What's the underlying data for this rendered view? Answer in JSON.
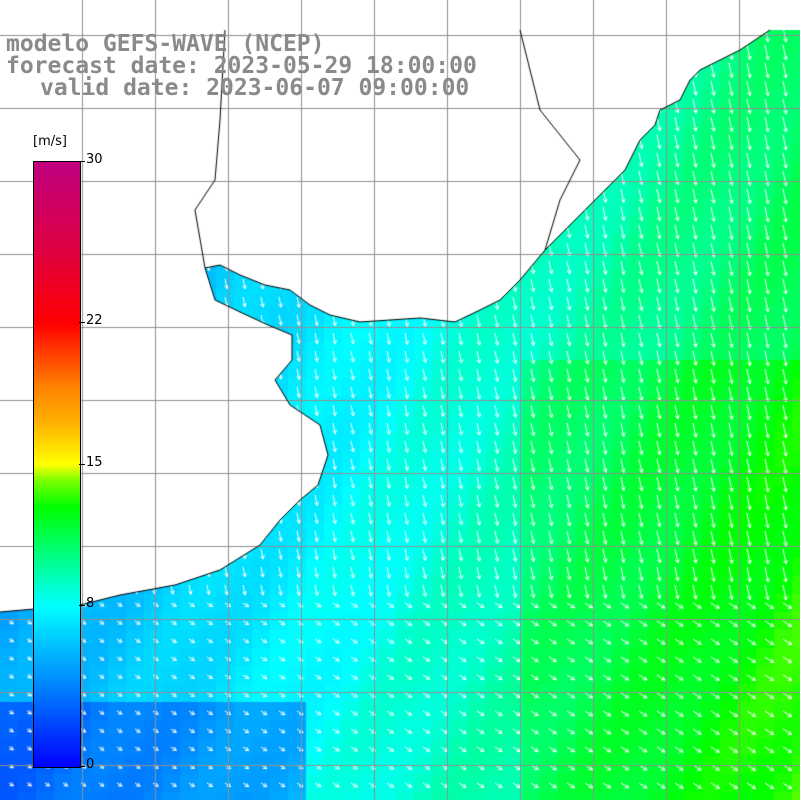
{
  "title": {
    "model": "modelo GEFS-WAVE (NCEP)",
    "forecast": "forecast date: 2023-05-29 18:00:00",
    "valid": "valid date: 2023-06-07 09:00:00"
  },
  "colorbar": {
    "unit": "[m/s]",
    "ticks": [
      "30",
      "22",
      "15",
      "8",
      "0"
    ],
    "tick_values": [
      30,
      22,
      15,
      8,
      0
    ],
    "range": [
      0,
      30
    ],
    "colors": [
      "#0000ff",
      "#00c0ff",
      "#00ffff",
      "#00ff00",
      "#ffff00",
      "#ff8000",
      "#ff0000",
      "#c00080"
    ]
  },
  "map": {
    "variable": "wind speed and direction",
    "grid_lines": true,
    "arrow_direction": "toward south-southeast",
    "wind_speed_range_ms": [
      2,
      12
    ]
  }
}
